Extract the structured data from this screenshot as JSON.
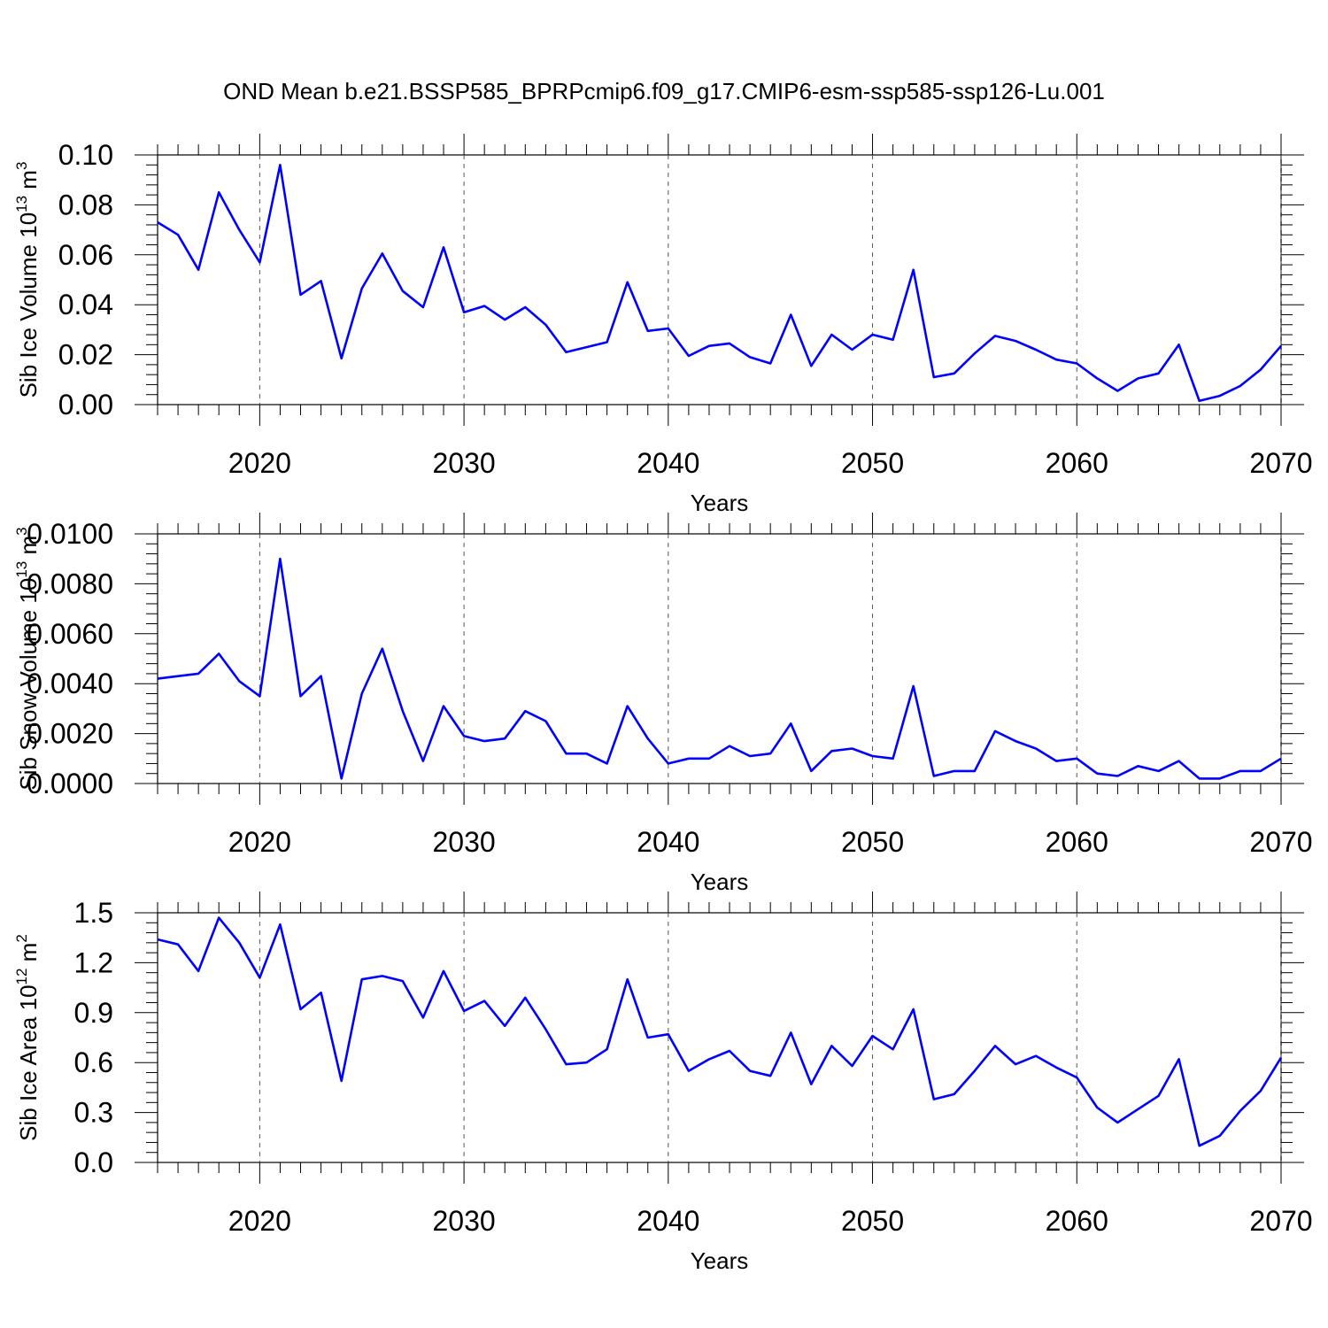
{
  "title": "OND Mean b.e21.BSSP585_BPRPcmip6.f09_g17.CMIP6-esm-ssp585-ssp126-Lu.001",
  "line_color": "#0000ff",
  "chart_data": [
    {
      "type": "line",
      "ylabel": "Sib Ice Volume 10",
      "ylabel_exp": "13",
      "ylabel_unit": " m",
      "ylabel_unit_exp": "3",
      "xlabel": "Years",
      "xlim": [
        2015,
        2070
      ],
      "ylim": [
        0,
        0.1
      ],
      "x_ticks": [
        "2020",
        "2030",
        "2040",
        "2050",
        "2060",
        "2070"
      ],
      "y_ticks": [
        "0.00",
        "0.02",
        "0.04",
        "0.06",
        "0.08",
        "0.10"
      ],
      "grid": "vertical dashed at major x ticks",
      "series": [
        {
          "x": [
            2015,
            2016,
            2017,
            2018,
            2019,
            2020,
            2021,
            2022,
            2023,
            2024,
            2025,
            2026,
            2027,
            2028,
            2029,
            2030,
            2031,
            2032,
            2033,
            2034,
            2035,
            2036,
            2037,
            2038,
            2039,
            2040,
            2041,
            2042,
            2043,
            2044,
            2045,
            2046,
            2047,
            2048,
            2049,
            2050,
            2051,
            2052,
            2053,
            2054,
            2055,
            2056,
            2057,
            2058,
            2059,
            2060,
            2061,
            2062,
            2063,
            2064,
            2065,
            2066,
            2067,
            2068,
            2069,
            2070
          ],
          "values": [
            0.073,
            0.068,
            0.054,
            0.085,
            0.07,
            0.057,
            0.096,
            0.044,
            0.0495,
            0.0185,
            0.0465,
            0.0605,
            0.0455,
            0.039,
            0.063,
            0.037,
            0.0395,
            0.034,
            0.039,
            0.032,
            0.021,
            0.023,
            0.025,
            0.049,
            0.0295,
            0.0305,
            0.0195,
            0.0235,
            0.0245,
            0.019,
            0.0165,
            0.036,
            0.0155,
            0.028,
            0.022,
            0.028,
            0.026,
            0.054,
            0.011,
            0.0125,
            0.0205,
            0.0275,
            0.0255,
            0.022,
            0.018,
            0.0165,
            0.0105,
            0.0055,
            0.0105,
            0.0125,
            0.024,
            0.0015,
            0.0035,
            0.0075,
            0.014,
            0.0235
          ]
        }
      ]
    },
    {
      "type": "line",
      "ylabel": "Sib Snow Volume 10",
      "ylabel_exp": "13",
      "ylabel_unit": " m",
      "ylabel_unit_exp": "3",
      "xlabel": "Years",
      "xlim": [
        2015,
        2070
      ],
      "ylim": [
        0,
        0.01
      ],
      "x_ticks": [
        "2020",
        "2030",
        "2040",
        "2050",
        "2060",
        "2070"
      ],
      "y_ticks": [
        "0.0000",
        "0.0020",
        "0.0040",
        "0.0060",
        "0.0080",
        "0.0100"
      ],
      "grid": "vertical dashed at major x ticks",
      "series": [
        {
          "x": [
            2015,
            2016,
            2017,
            2018,
            2019,
            2020,
            2021,
            2022,
            2023,
            2024,
            2025,
            2026,
            2027,
            2028,
            2029,
            2030,
            2031,
            2032,
            2033,
            2034,
            2035,
            2036,
            2037,
            2038,
            2039,
            2040,
            2041,
            2042,
            2043,
            2044,
            2045,
            2046,
            2047,
            2048,
            2049,
            2050,
            2051,
            2052,
            2053,
            2054,
            2055,
            2056,
            2057,
            2058,
            2059,
            2060,
            2061,
            2062,
            2063,
            2064,
            2065,
            2066,
            2067,
            2068,
            2069,
            2070
          ],
          "values": [
            0.0042,
            0.0043,
            0.0044,
            0.0052,
            0.0041,
            0.0035,
            0.009,
            0.0035,
            0.0043,
            0.0002,
            0.0036,
            0.0054,
            0.0029,
            0.0009,
            0.0031,
            0.0019,
            0.0017,
            0.0018,
            0.0029,
            0.0025,
            0.0012,
            0.0012,
            0.0008,
            0.0031,
            0.0018,
            0.0008,
            0.001,
            0.001,
            0.0015,
            0.0011,
            0.0012,
            0.0024,
            0.0005,
            0.0013,
            0.0014,
            0.0011,
            0.001,
            0.0039,
            0.0003,
            0.0005,
            0.0005,
            0.0021,
            0.0017,
            0.0014,
            0.0009,
            0.001,
            0.0004,
            0.0003,
            0.0007,
            0.0005,
            0.0009,
            0.0002,
            0.0002,
            0.0005,
            0.0005,
            0.001
          ]
        }
      ]
    },
    {
      "type": "line",
      "ylabel": "Sib Ice Area 10",
      "ylabel_exp": "12",
      "ylabel_unit": " m",
      "ylabel_unit_exp": "2",
      "xlabel": "Years",
      "xlim": [
        2015,
        2070
      ],
      "ylim": [
        0,
        1.5
      ],
      "x_ticks": [
        "2020",
        "2030",
        "2040",
        "2050",
        "2060",
        "2070"
      ],
      "y_ticks": [
        "0.0",
        "0.3",
        "0.6",
        "0.9",
        "1.2",
        "1.5"
      ],
      "grid": "vertical dashed at major x ticks",
      "series": [
        {
          "x": [
            2015,
            2016,
            2017,
            2018,
            2019,
            2020,
            2021,
            2022,
            2023,
            2024,
            2025,
            2026,
            2027,
            2028,
            2029,
            2030,
            2031,
            2032,
            2033,
            2034,
            2035,
            2036,
            2037,
            2038,
            2039,
            2040,
            2041,
            2042,
            2043,
            2044,
            2045,
            2046,
            2047,
            2048,
            2049,
            2050,
            2051,
            2052,
            2053,
            2054,
            2055,
            2056,
            2057,
            2058,
            2059,
            2060,
            2061,
            2062,
            2063,
            2064,
            2065,
            2066,
            2067,
            2068,
            2069,
            2070
          ],
          "values": [
            1.34,
            1.31,
            1.15,
            1.47,
            1.32,
            1.11,
            1.43,
            0.92,
            1.02,
            0.49,
            1.1,
            1.12,
            1.09,
            0.87,
            1.15,
            0.91,
            0.97,
            0.82,
            0.99,
            0.8,
            0.59,
            0.6,
            0.68,
            1.1,
            0.75,
            0.77,
            0.55,
            0.62,
            0.67,
            0.55,
            0.52,
            0.78,
            0.47,
            0.7,
            0.58,
            0.76,
            0.68,
            0.92,
            0.38,
            0.41,
            0.55,
            0.7,
            0.59,
            0.64,
            0.57,
            0.51,
            0.33,
            0.24,
            0.32,
            0.4,
            0.62,
            0.1,
            0.16,
            0.31,
            0.43,
            0.63
          ]
        }
      ]
    }
  ]
}
